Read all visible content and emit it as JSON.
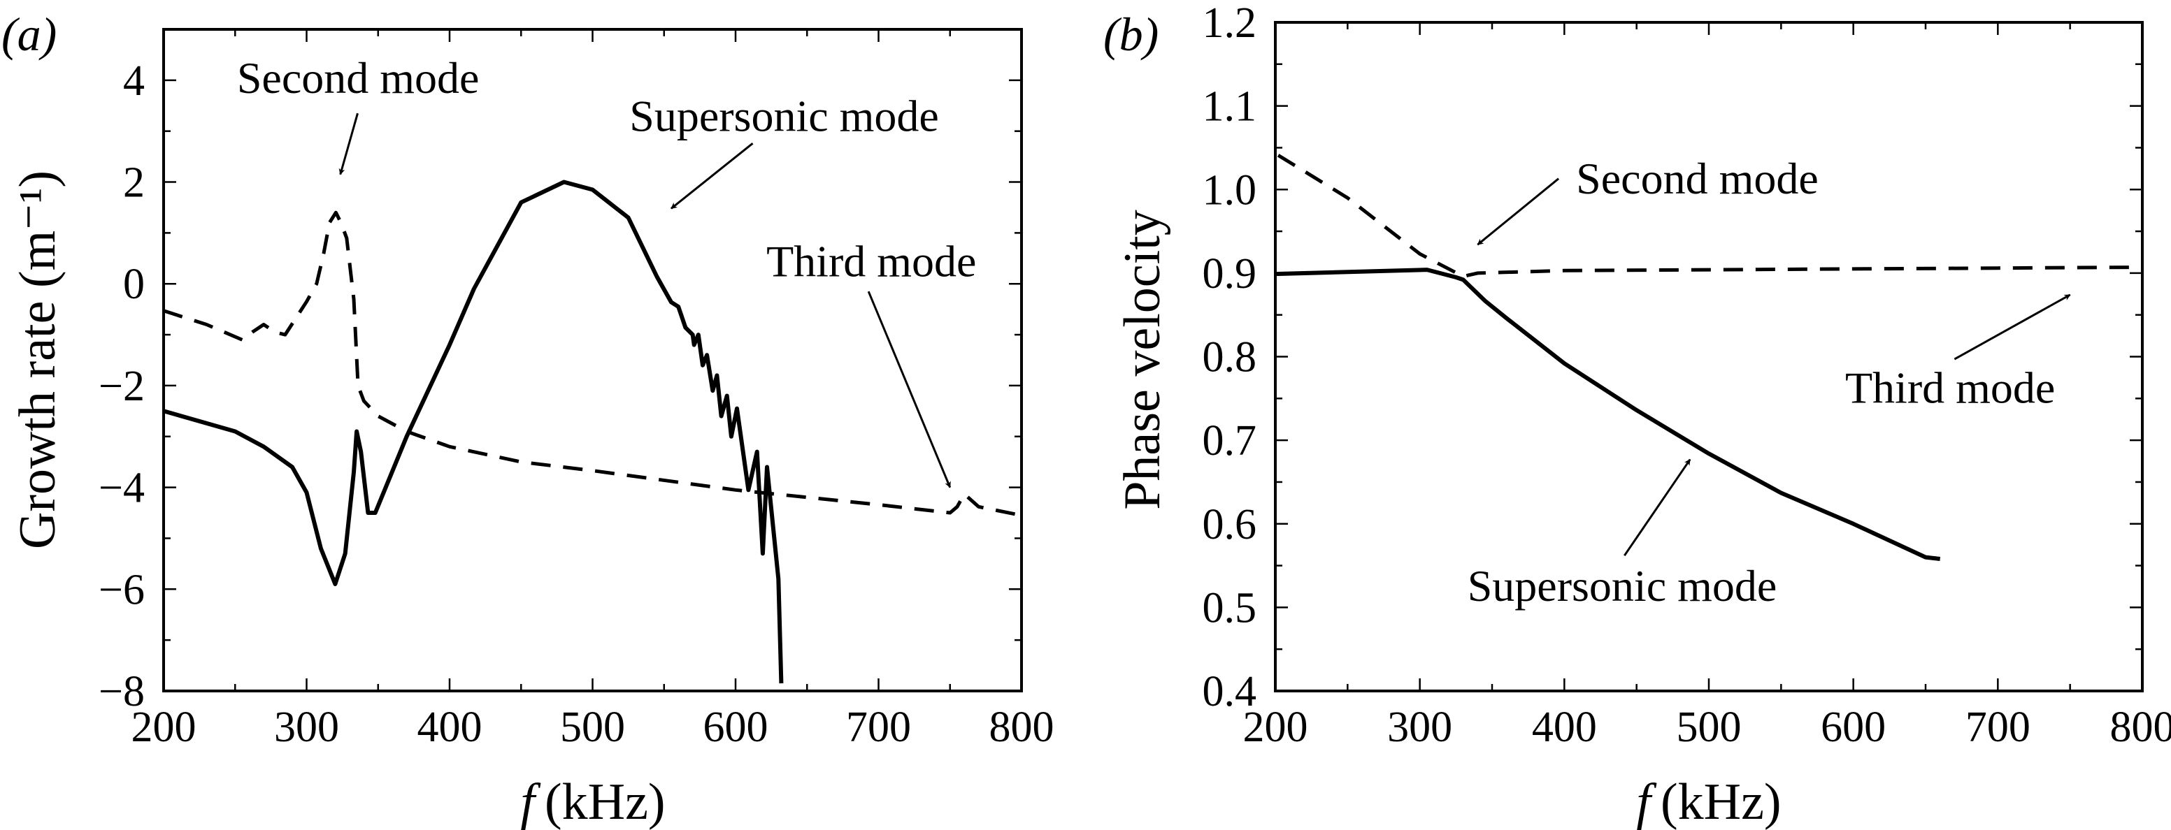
{
  "chart_data": [
    {
      "panel": "(a)",
      "type": "line",
      "xlabel_var": "f",
      "xlabel_unit": "(kHz)",
      "ylabel": "Growth rate (m⁻¹)",
      "xlim": [
        200,
        800
      ],
      "ylim": [
        -8,
        5
      ],
      "xticks": [
        200,
        300,
        400,
        500,
        600,
        700,
        800
      ],
      "yticks": [
        -8,
        -6,
        -4,
        -2,
        0,
        2,
        4
      ],
      "ytick_labels": [
        "−8",
        "−6",
        "−4",
        "−2",
        "0",
        "2",
        "4"
      ],
      "grid": false,
      "series": [
        {
          "name": "Supersonic mode",
          "style": "solid",
          "x": [
            200,
            250,
            270,
            290,
            300,
            310,
            320,
            327,
            333,
            335,
            338,
            343,
            348,
            370,
            400,
            417,
            450,
            480,
            500,
            525,
            545,
            555,
            560,
            565,
            570,
            571,
            574,
            577,
            580,
            584,
            587,
            590,
            594,
            597,
            601,
            609,
            615,
            619,
            622,
            630,
            632
          ],
          "y": [
            -2.5,
            -2.9,
            -3.2,
            -3.6,
            -4.1,
            -5.2,
            -5.9,
            -5.3,
            -3.7,
            -2.9,
            -3.3,
            -4.5,
            -4.5,
            -3.0,
            -1.2,
            -0.1,
            1.6,
            2.0,
            1.85,
            1.3,
            0.14,
            -0.36,
            -0.45,
            -0.86,
            -1.0,
            -1.2,
            -1.0,
            -1.6,
            -1.4,
            -2.1,
            -1.8,
            -2.6,
            -2.2,
            -3.0,
            -2.45,
            -4.05,
            -3.3,
            -5.3,
            -3.6,
            -5.8,
            -7.85
          ]
        },
        {
          "name": "Second / Third mode",
          "style": "dashed",
          "x": [
            200,
            230,
            255,
            262,
            270,
            278,
            285,
            300,
            307,
            312,
            316,
            320.5,
            324,
            328,
            333,
            336,
            340,
            350,
            370,
            400,
            450,
            500,
            600,
            700,
            750,
            755,
            760,
            770,
            800
          ],
          "y": [
            -0.53,
            -0.8,
            -1.1,
            -0.95,
            -0.8,
            -0.95,
            -1.0,
            -0.35,
            0.0,
            0.6,
            1.2,
            1.4,
            1.2,
            0.9,
            -0.3,
            -2.0,
            -2.3,
            -2.6,
            -2.9,
            -3.2,
            -3.5,
            -3.67,
            -4.05,
            -4.34,
            -4.5,
            -4.38,
            -4.13,
            -4.38,
            -4.55
          ]
        }
      ],
      "annotations": [
        {
          "text": "Second mode"
        },
        {
          "text": "Supersonic mode"
        },
        {
          "text": "Third mode"
        }
      ]
    },
    {
      "panel": "(b)",
      "type": "line",
      "xlabel_var": "f",
      "xlabel_unit": "(kHz)",
      "ylabel": "Phase velocity",
      "xlim": [
        200,
        800
      ],
      "ylim": [
        0.4,
        1.2
      ],
      "xticks": [
        200,
        300,
        400,
        500,
        600,
        700,
        800
      ],
      "yticks": [
        0.4,
        0.5,
        0.6,
        0.7,
        0.8,
        0.9,
        1.0,
        1.1,
        1.2
      ],
      "ytick_labels": [
        "0.4",
        "0.5",
        "0.6",
        "0.7",
        "0.8",
        "0.9",
        "1.0",
        "1.1",
        "1.2"
      ],
      "grid": false,
      "series": [
        {
          "name": "Supersonic mode",
          "style": "solid",
          "x": [
            200,
            305,
            325,
            330,
            345,
            360,
            400,
            450,
            500,
            550,
            600,
            650,
            660
          ],
          "y": [
            0.899,
            0.904,
            0.895,
            0.892,
            0.867,
            0.846,
            0.792,
            0.736,
            0.684,
            0.637,
            0.6,
            0.56,
            0.558
          ]
        },
        {
          "name": "Second / Third mode",
          "style": "dashed",
          "x": [
            202,
            250,
            300,
            330,
            340,
            400,
            500,
            600,
            700,
            800
          ],
          "y": [
            1.041,
            0.99,
            0.923,
            0.896,
            0.9,
            0.903,
            0.904,
            0.905,
            0.906,
            0.907
          ]
        }
      ],
      "annotations": [
        {
          "text": "Second mode"
        },
        {
          "text": "Third mode"
        },
        {
          "text": "Supersonic mode"
        }
      ]
    }
  ]
}
